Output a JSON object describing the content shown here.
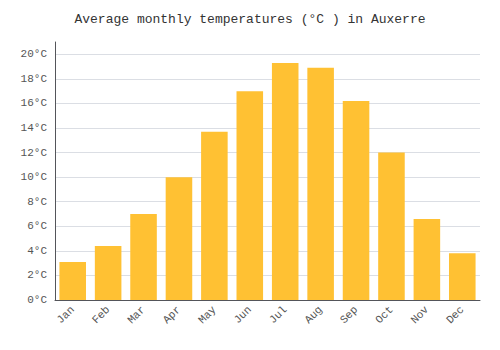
{
  "chart_data": {
    "type": "bar",
    "title": "Average monthly temperatures (°C ) in Auxerre",
    "categories": [
      "Jan",
      "Feb",
      "Mar",
      "Apr",
      "May",
      "Jun",
      "Jul",
      "Aug",
      "Sep",
      "Oct",
      "Nov",
      "Dec"
    ],
    "values": [
      3.1,
      4.4,
      7.0,
      10.0,
      13.7,
      17.0,
      19.3,
      18.9,
      16.2,
      12.0,
      6.6,
      3.8
    ],
    "color": "#FFC133",
    "ylim": [
      0,
      21
    ],
    "yticks": [
      {
        "value": 0,
        "label": "0°C"
      },
      {
        "value": 2,
        "label": "2°C"
      },
      {
        "value": 4,
        "label": "4°C"
      },
      {
        "value": 6,
        "label": "6°C"
      },
      {
        "value": 8,
        "label": "8°C"
      },
      {
        "value": 10,
        "label": "10°C"
      },
      {
        "value": 12,
        "label": "12°C"
      },
      {
        "value": 14,
        "label": "14°C"
      },
      {
        "value": 16,
        "label": "16°C"
      },
      {
        "value": 18,
        "label": "18°C"
      },
      {
        "value": 20,
        "label": "20°C"
      }
    ],
    "grid": true
  }
}
